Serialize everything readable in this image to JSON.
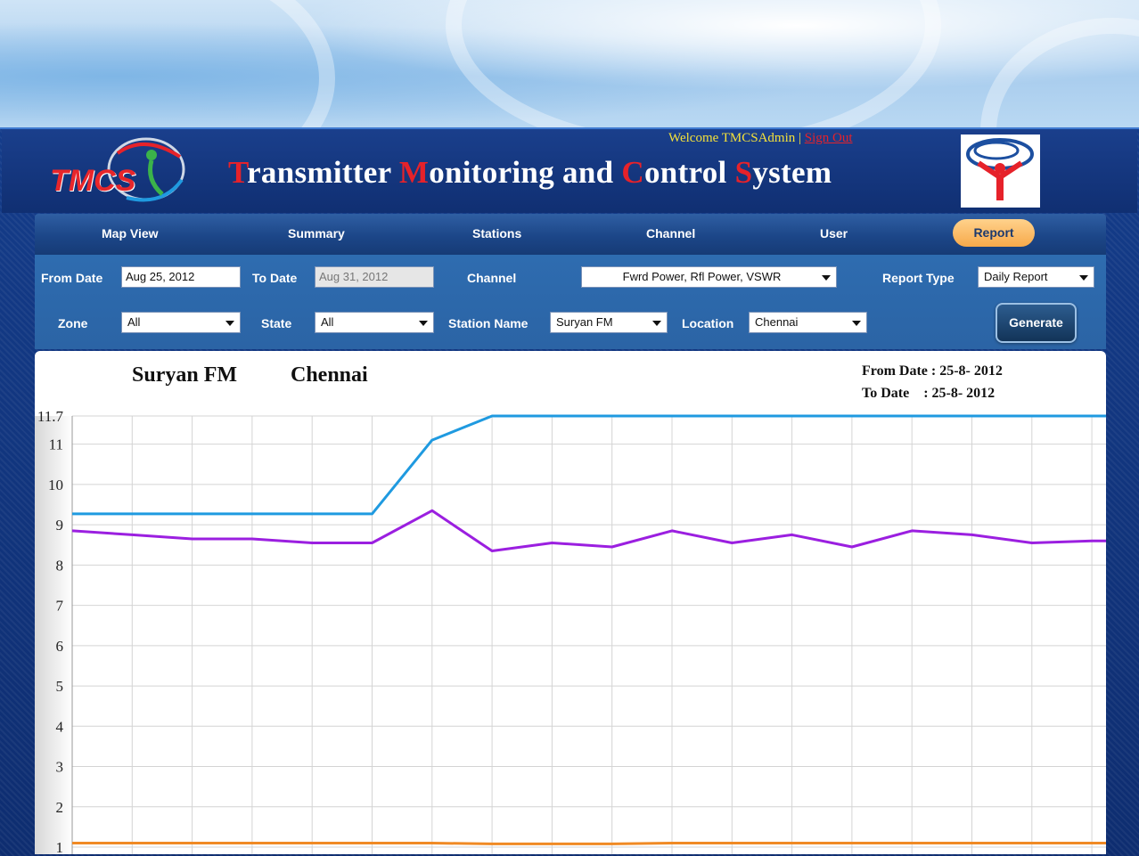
{
  "header": {
    "logo_text": "TMCS",
    "title_parts": [
      {
        "cap": "T",
        "rest": "ransmitter "
      },
      {
        "cap": "M",
        "rest": "onitoring and "
      },
      {
        "cap": "C",
        "rest": "ontrol "
      },
      {
        "cap": "S",
        "rest": "ystem"
      }
    ],
    "welcome_text": "Welcome TMCSAdmin |",
    "sign_out": "Sign Out"
  },
  "nav": {
    "items": [
      {
        "label": "Map View"
      },
      {
        "label": "Summary"
      },
      {
        "label": "Stations"
      },
      {
        "label": "Channel"
      },
      {
        "label": "User"
      }
    ],
    "active_label": "Report"
  },
  "filters": {
    "from_date_label": "From Date",
    "from_date_value": "Aug 25, 2012",
    "to_date_label": "To Date",
    "to_date_value": "Aug 31, 2012",
    "channel_label": "Channel",
    "channel_value": "Fwrd Power, Rfl Power, VSWR",
    "report_type_label": "Report Type",
    "report_type_value": "Daily Report",
    "zone_label": "Zone",
    "zone_value": "All",
    "state_label": "State",
    "state_value": "All",
    "station_label": "Station Name",
    "station_value": "Suryan FM",
    "location_label": "Location",
    "location_value": "Chennai",
    "generate_label": "Generate"
  },
  "report": {
    "station": "Suryan FM",
    "location": "Chennai",
    "from_date_line": "From Date : 25-8- 2012",
    "to_date_line": "To Date    : 25-8- 2012"
  },
  "chart_data": {
    "type": "line",
    "y_ticks": [
      "11.7",
      "11",
      "10",
      "9",
      "8",
      "7",
      "6",
      "5",
      "4",
      "3",
      "2",
      "1"
    ],
    "ylim": [
      1,
      11.7
    ],
    "grid": true,
    "x": [
      0,
      1,
      2,
      3,
      4,
      5,
      6,
      7,
      8,
      9,
      10,
      11,
      12,
      13,
      14,
      15,
      16,
      17
    ],
    "series": [
      {
        "color": "#1f9ae0",
        "values": [
          9.27,
          9.27,
          9.27,
          9.27,
          9.27,
          9.27,
          11.1,
          11.7,
          11.7,
          11.7,
          11.7,
          11.7,
          11.7,
          11.7,
          11.7,
          11.7,
          11.7,
          11.7
        ]
      },
      {
        "color": "#9b1fe0",
        "values": [
          8.85,
          8.75,
          8.65,
          8.65,
          8.55,
          8.55,
          9.35,
          8.35,
          8.55,
          8.45,
          8.85,
          8.55,
          8.75,
          8.45,
          8.85,
          8.75,
          8.55,
          8.6
        ]
      },
      {
        "color": "#f08a24",
        "values": [
          1.1,
          1.1,
          1.1,
          1.1,
          1.1,
          1.1,
          1.1,
          1.08,
          1.08,
          1.08,
          1.1,
          1.1,
          1.1,
          1.1,
          1.1,
          1.1,
          1.1,
          1.1
        ]
      }
    ]
  }
}
